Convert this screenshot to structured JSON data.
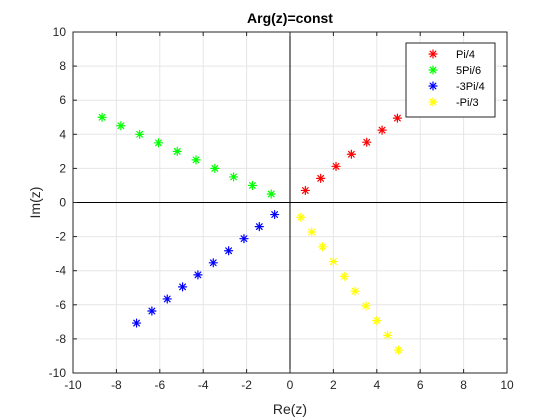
{
  "chart_data": {
    "type": "scatter",
    "title": "Arg(z)=const",
    "xlabel": "Re(z)",
    "ylabel": "Im(z)",
    "xlim": [
      -10,
      10
    ],
    "ylim": [
      -10,
      10
    ],
    "xticks": [
      -10,
      -8,
      -6,
      -4,
      -2,
      0,
      2,
      4,
      6,
      8,
      10
    ],
    "yticks": [
      -10,
      -8,
      -6,
      -4,
      -2,
      0,
      2,
      4,
      6,
      8,
      10
    ],
    "grid": true,
    "legend_position": "top-right",
    "marker": "asterisk",
    "series": [
      {
        "name": "Pi/4",
        "color": "#ff0000",
        "x": [
          0.707,
          1.414,
          2.121,
          2.828,
          3.536,
          4.243,
          4.95
        ],
        "y": [
          0.707,
          1.414,
          2.121,
          2.828,
          3.536,
          4.243,
          4.95
        ]
      },
      {
        "name": "5Pi/6",
        "color": "#00ff00",
        "x": [
          -0.866,
          -1.732,
          -2.598,
          -3.464,
          -4.33,
          -5.196,
          -6.062,
          -6.928,
          -7.794,
          -8.66
        ],
        "y": [
          0.5,
          1.0,
          1.5,
          2.0,
          2.5,
          3.0,
          3.5,
          4.0,
          4.5,
          5.0
        ]
      },
      {
        "name": "-3Pi/4",
        "color": "#0000ff",
        "x": [
          -0.707,
          -1.414,
          -2.121,
          -2.828,
          -3.536,
          -4.243,
          -4.95,
          -5.657,
          -6.364,
          -7.071
        ],
        "y": [
          -0.707,
          -1.414,
          -2.121,
          -2.828,
          -3.536,
          -4.243,
          -4.95,
          -5.657,
          -6.364,
          -7.071
        ]
      },
      {
        "name": "-Pi/3",
        "color": "#ffff00",
        "x": [
          0.5,
          1.0,
          1.5,
          2.0,
          2.5,
          3.0,
          3.5,
          4.0,
          4.5,
          5.0
        ],
        "y": [
          -0.866,
          -1.732,
          -2.598,
          -3.464,
          -4.33,
          -5.196,
          -6.062,
          -6.928,
          -7.794,
          -8.66
        ]
      }
    ]
  }
}
